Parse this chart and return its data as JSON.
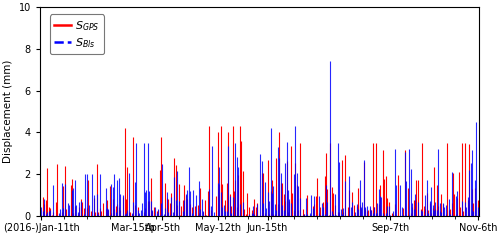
{
  "title": "",
  "ylabel": "Displacement (mm)",
  "ylim": [
    0,
    10
  ],
  "yticks": [
    0,
    2,
    4,
    6,
    8,
    10
  ],
  "xtick_labels": [
    "(2016-)Jan-11th",
    "Mar-15th",
    "Apr-5th",
    "May-12th",
    "Jun-15th",
    "Sep-7th",
    "Nov-6th"
  ],
  "xtick_positions": [
    0,
    63,
    83,
    121,
    155,
    239,
    299
  ],
  "legend_gps": "$\\mathit{S}_{GPS}$",
  "legend_bls": "$\\mathit{S}_{Bls}$",
  "color_gps": "#ff0000",
  "color_bls": "#0000ff",
  "background_color": "#ffffff",
  "figsize": [
    5.0,
    2.36
  ],
  "dpi": 100,
  "n_points": 300
}
